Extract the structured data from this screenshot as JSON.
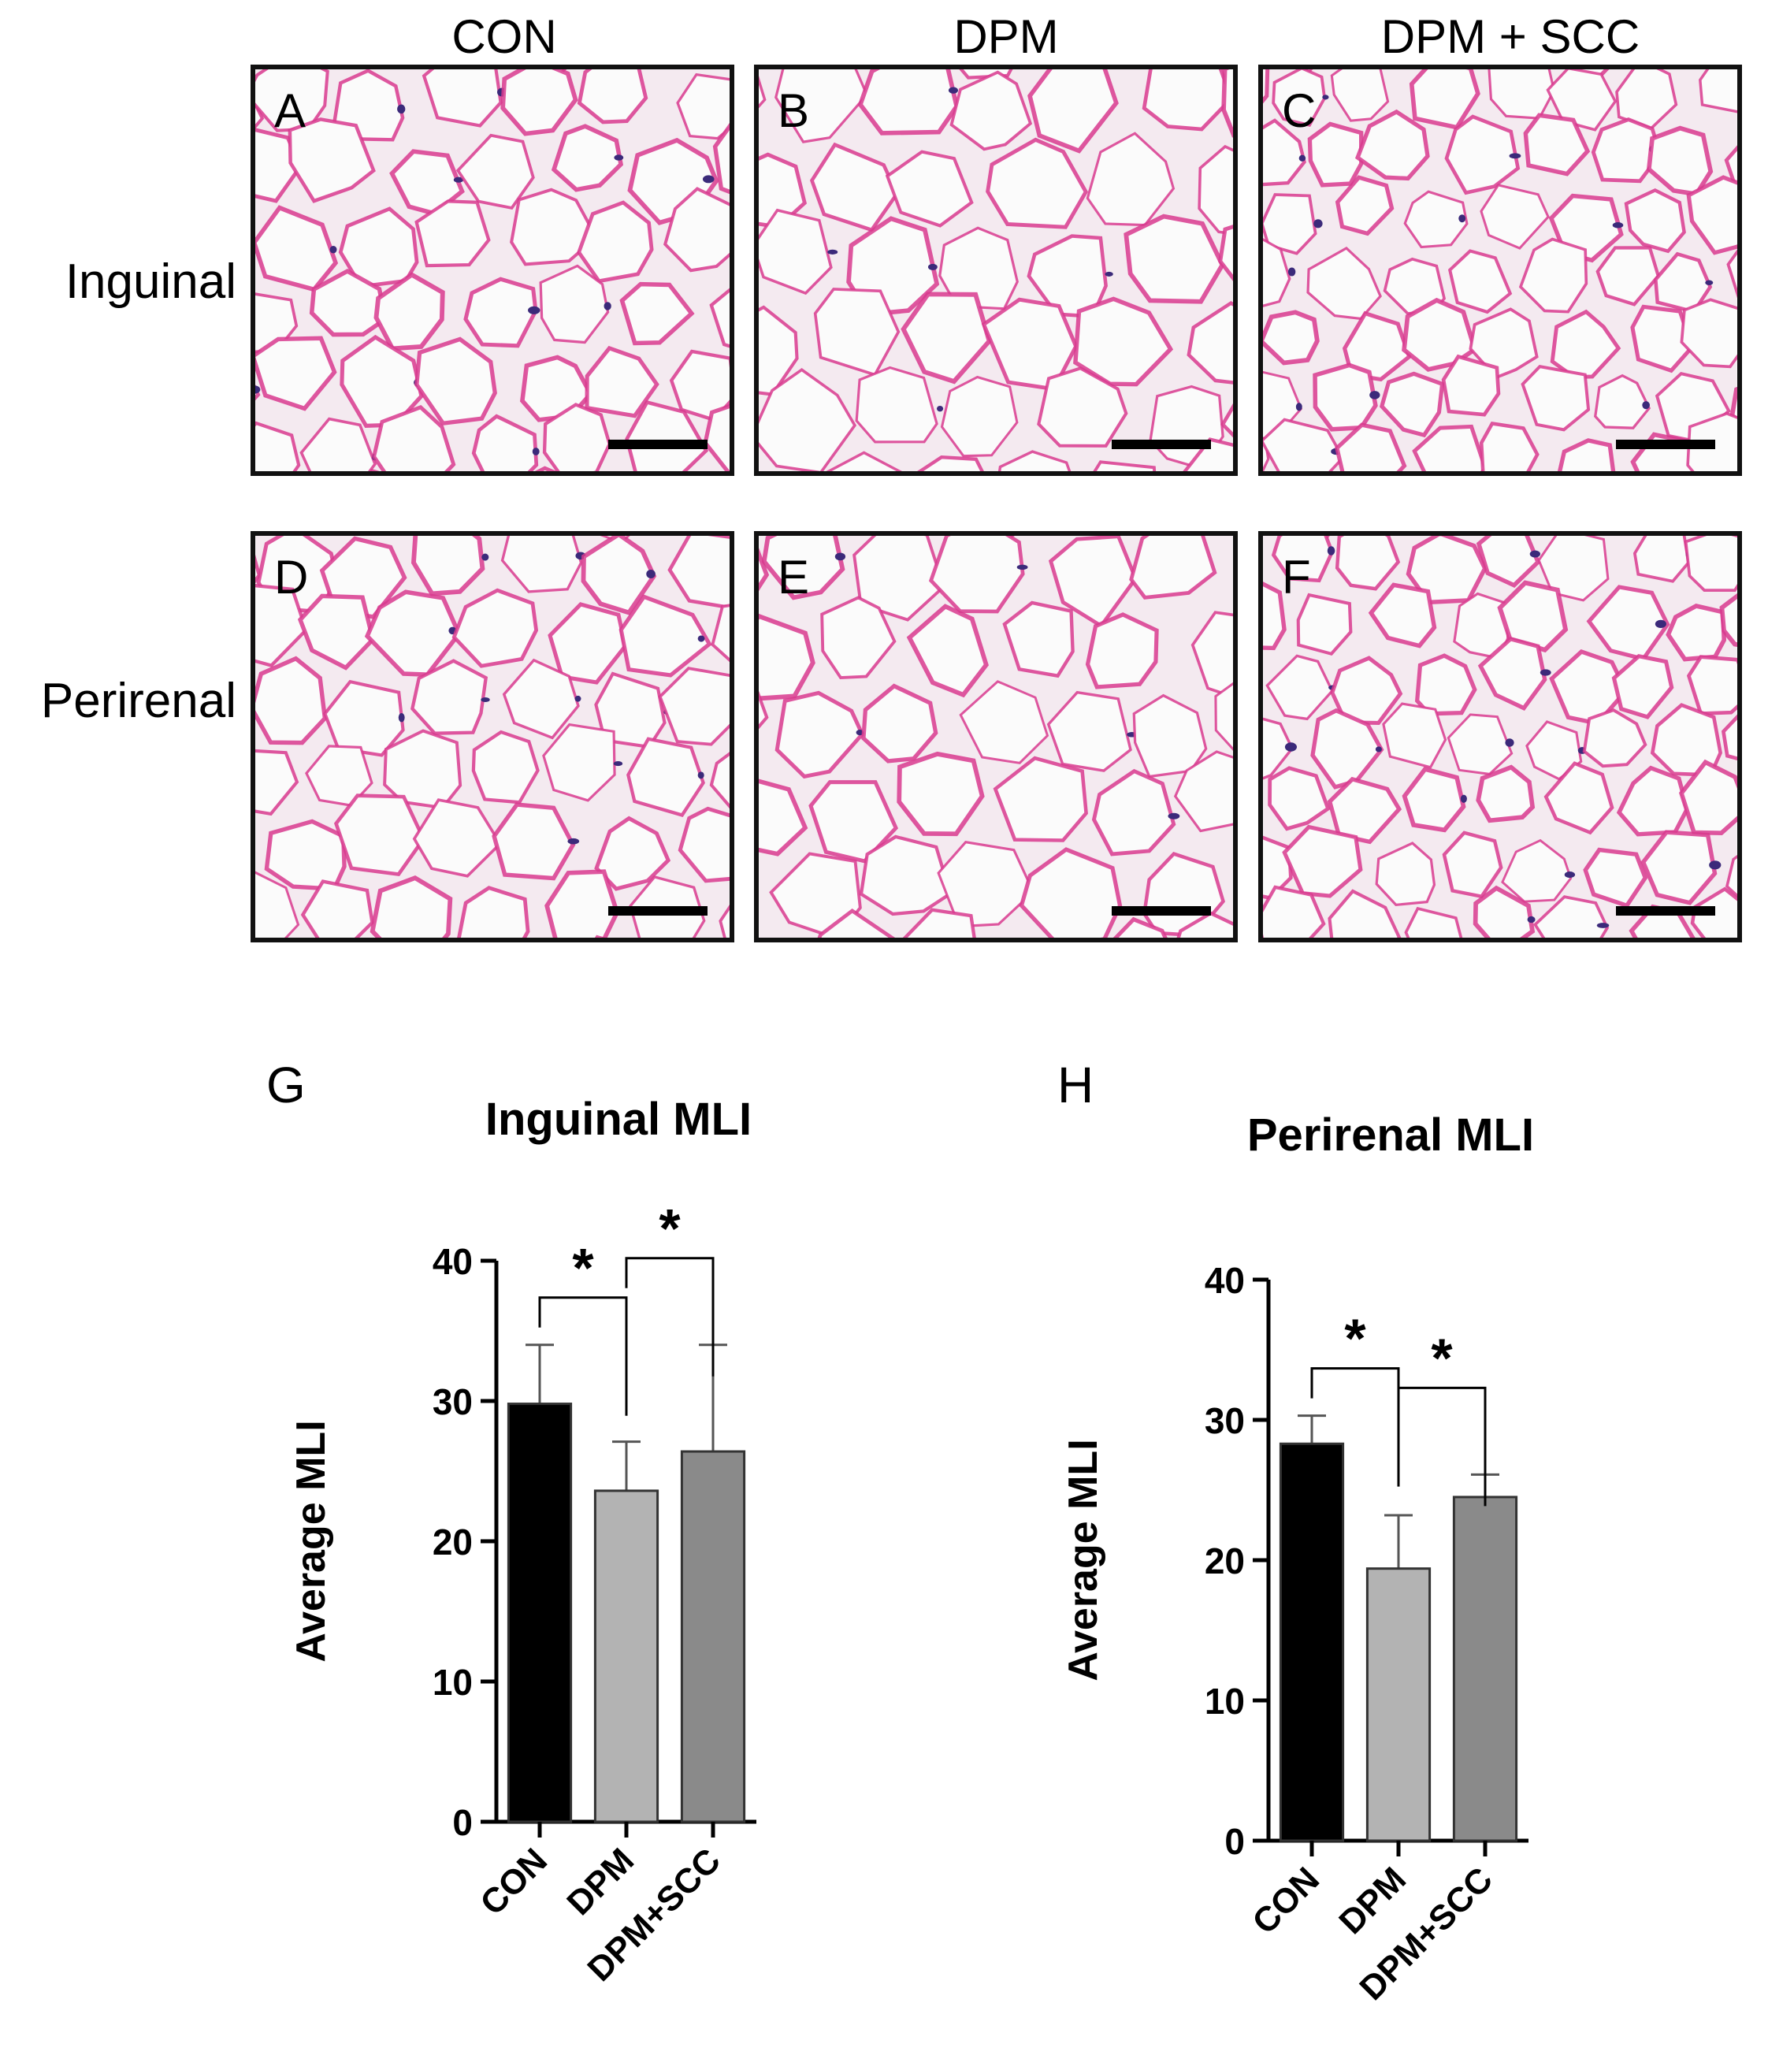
{
  "micrographs": {
    "columns": [
      "CON",
      "DPM",
      "DPM + SCC"
    ],
    "rows": [
      "Inguinal",
      "Perirenal"
    ],
    "panels": [
      "A",
      "B",
      "C",
      "D",
      "E",
      "F"
    ]
  },
  "colors": {
    "stain_membrane": "#d83a8e",
    "stain_nucleus": "#3b2a7a",
    "bar_con": "#000000",
    "bar_dpm": "#b3b3b3",
    "bar_dpm_scc": "#8a8a8a"
  },
  "chart_data": [
    {
      "panel": "G",
      "type": "bar",
      "title": "Inguinal MLI",
      "ylabel": "Average MLI",
      "xlabel": "",
      "categories": [
        "CON",
        "DPM",
        "DPM+SCC"
      ],
      "values": [
        29.8,
        23.6,
        26.4
      ],
      "errors": [
        4.2,
        3.5,
        7.6
      ],
      "colors": [
        "#000000",
        "#b3b3b3",
        "#8a8a8a"
      ],
      "ylim": [
        0,
        40
      ],
      "yticks": [
        0,
        10,
        20,
        30,
        40
      ],
      "significance": [
        {
          "from": 0,
          "to": 1,
          "label": "*"
        },
        {
          "from": 1,
          "to": 2,
          "label": "*"
        }
      ]
    },
    {
      "panel": "H",
      "type": "bar",
      "title": "Perirenal MLI",
      "ylabel": "Average MLI",
      "xlabel": "",
      "categories": [
        "CON",
        "DPM",
        "DPM+SCC"
      ],
      "values": [
        28.3,
        19.4,
        24.5
      ],
      "errors": [
        2.0,
        3.8,
        1.6
      ],
      "colors": [
        "#000000",
        "#b3b3b3",
        "#8a8a8a"
      ],
      "ylim": [
        0,
        40
      ],
      "yticks": [
        0,
        10,
        20,
        30,
        40
      ],
      "significance": [
        {
          "from": 0,
          "to": 1,
          "label": "*"
        },
        {
          "from": 1,
          "to": 2,
          "label": "*"
        }
      ]
    }
  ]
}
